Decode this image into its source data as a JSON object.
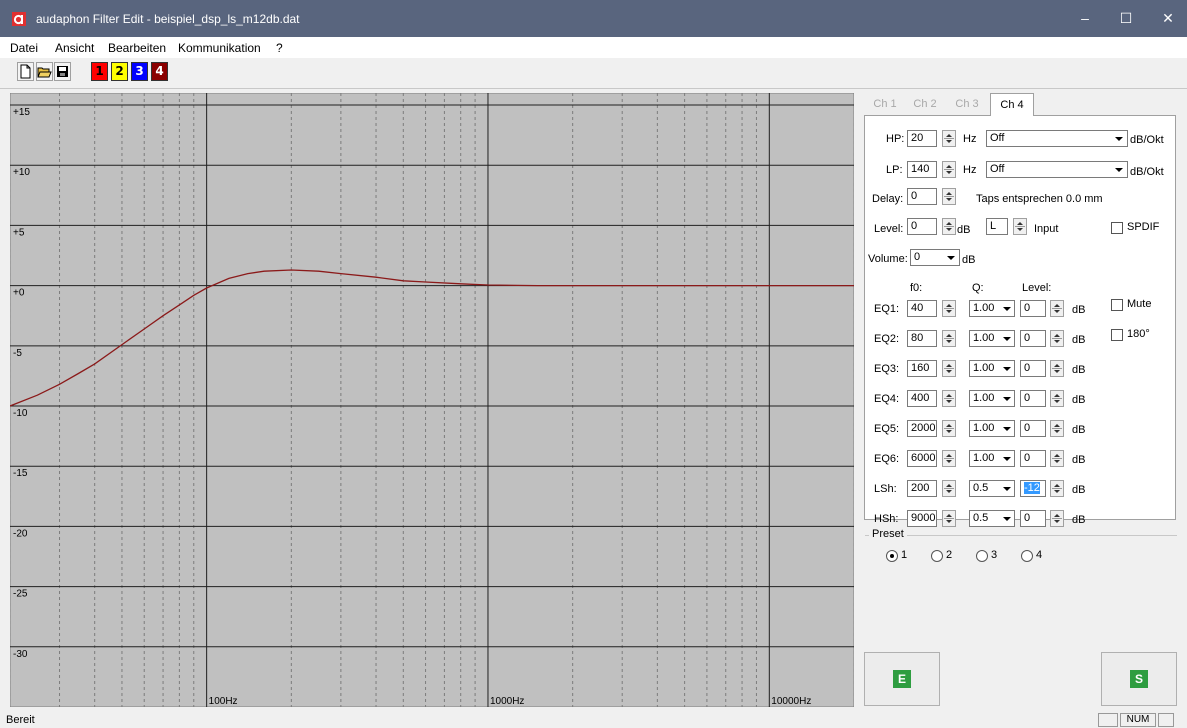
{
  "window": {
    "title": "audaphon Filter Edit - beispiel_dsp_ls_m12db.dat",
    "minimize": "–",
    "maximize": "☐",
    "close": "✕"
  },
  "menu": {
    "datei": "Datei",
    "ansicht": "Ansicht",
    "bearbeiten": "Bearbeiten",
    "kommunikation": "Kommunikation",
    "help": "?"
  },
  "toolbar": {
    "icons": [
      "new-file-icon",
      "open-folder-icon",
      "save-icon"
    ],
    "channels": [
      {
        "label": "1",
        "color": "#ff0000",
        "text_color": "#000000"
      },
      {
        "label": "2",
        "color": "#ffff00",
        "text_color": "#000000"
      },
      {
        "label": "3",
        "color": "#0000ff",
        "text_color": "#ffffff"
      },
      {
        "label": "4",
        "color": "#8b0000",
        "text_color": "#ffffff"
      }
    ]
  },
  "chart_data": {
    "type": "line",
    "x_scale": "log",
    "xlim": [
      20,
      20000
    ],
    "ylim": [
      -35,
      16
    ],
    "y_ticks": [
      15,
      10,
      5,
      0,
      -5,
      -10,
      -15,
      -20,
      -25,
      -30
    ],
    "y_tick_labels": [
      "+15",
      "+10",
      "+5",
      "+0",
      "-5",
      "-10",
      "-15",
      "-20",
      "-25",
      "-30"
    ],
    "x_major": [
      100,
      1000,
      10000
    ],
    "x_tick_labels": [
      "100Hz",
      "1000Hz",
      "10000Hz"
    ],
    "grid": true,
    "background": "#c0c0c0",
    "series": [
      {
        "color": "#8b1a1a",
        "x": [
          20,
          25,
          30,
          35,
          40,
          50,
          60,
          70,
          80,
          90,
          100,
          120,
          140,
          160,
          200,
          250,
          300,
          400,
          500,
          600,
          800,
          1000,
          1500,
          2000,
          3000,
          5000,
          10000,
          20000
        ],
        "y": [
          -10,
          -9.1,
          -8.2,
          -7.3,
          -6.5,
          -4.9,
          -3.6,
          -2.5,
          -1.6,
          -0.8,
          -0.2,
          0.6,
          1.0,
          1.2,
          1.3,
          1.2,
          1.0,
          0.7,
          0.4,
          0.3,
          0.15,
          0.05,
          0,
          0,
          0,
          0,
          0,
          0
        ]
      }
    ]
  },
  "tabs": [
    "Ch 1",
    "Ch 2",
    "Ch 3",
    "Ch 4"
  ],
  "panel": {
    "hp_label": "HP:",
    "hp_value": "20",
    "hz1": "Hz",
    "hp_mode": "Off",
    "hp_unit": "dB/Okt",
    "lp_label": "LP:",
    "lp_value": "140",
    "hz2": "Hz",
    "lp_mode": "Off",
    "lp_unit": "dB/Okt",
    "delay_label": "Delay:",
    "delay_value": "0",
    "delay_info": "Taps entsprechen 0.0 mm",
    "level_label": "Level:",
    "level_value": "0",
    "level_db": "dB",
    "input_value": "L",
    "input_label": "Input",
    "spdif_label": "SPDIF",
    "volume_label": "Volume:",
    "volume_value": "0",
    "volume_db": "dB",
    "col_f0": "f0:",
    "col_q": "Q:",
    "col_level": "Level:",
    "mute_label": "Mute",
    "phase_label": "180°",
    "eq_rows": [
      {
        "label": "EQ1:",
        "f0": "40",
        "q": "1.00",
        "level": "0",
        "db": "dB"
      },
      {
        "label": "EQ2:",
        "f0": "80",
        "q": "1.00",
        "level": "0",
        "db": "dB"
      },
      {
        "label": "EQ3:",
        "f0": "160",
        "q": "1.00",
        "level": "0",
        "db": "dB"
      },
      {
        "label": "EQ4:",
        "f0": "400",
        "q": "1.00",
        "level": "0",
        "db": "dB"
      },
      {
        "label": "EQ5:",
        "f0": "2000",
        "q": "1.00",
        "level": "0",
        "db": "dB"
      },
      {
        "label": "EQ6:",
        "f0": "6000",
        "q": "1.00",
        "level": "0",
        "db": "dB"
      },
      {
        "label": "LSh:",
        "f0": "200",
        "q": "0.5",
        "level": "-12",
        "db": "dB"
      },
      {
        "label": "HSh:",
        "f0": "9000",
        "q": "0.5",
        "level": "0",
        "db": "dB"
      }
    ]
  },
  "preset": {
    "title": "Preset",
    "options": [
      "1",
      "2",
      "3",
      "4"
    ],
    "selected": "1"
  },
  "buttons": {
    "e_label": "E",
    "s_label": "S"
  },
  "status": {
    "text": "Bereit",
    "num": "NUM"
  }
}
